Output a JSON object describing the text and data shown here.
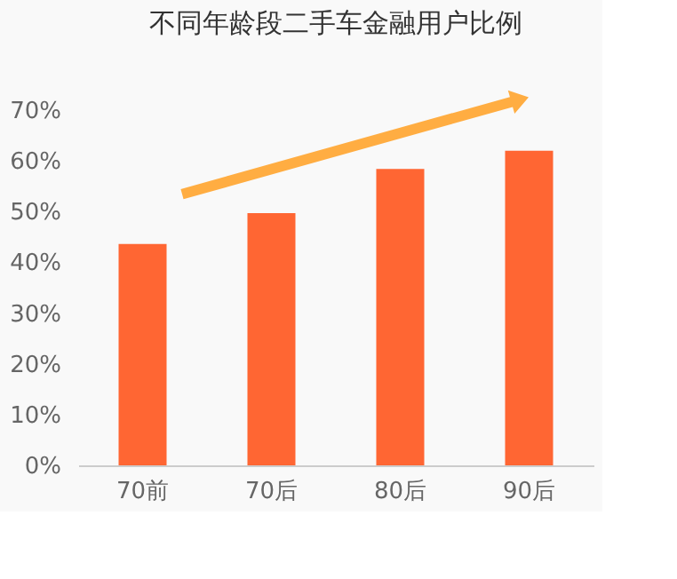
{
  "chart_data": {
    "type": "bar",
    "title": "不同年龄段二手车金融用户比例",
    "categories": [
      "70前",
      "70后",
      "80后",
      "90后"
    ],
    "values": [
      43.6,
      49.7,
      58.4,
      62
    ],
    "color": "#ff6633",
    "ylim": [
      0,
      70
    ],
    "yticks": [
      {
        "value": 0,
        "label": "0%"
      },
      {
        "value": 10,
        "label": "10%"
      },
      {
        "value": 20,
        "label": "20%"
      },
      {
        "value": 30,
        "label": "30%"
      },
      {
        "value": 40,
        "label": "40%"
      },
      {
        "value": 50,
        "label": "50%"
      },
      {
        "value": 60,
        "label": "60%"
      },
      {
        "value": 70,
        "label": "70%"
      }
    ],
    "grid": false
  }
}
